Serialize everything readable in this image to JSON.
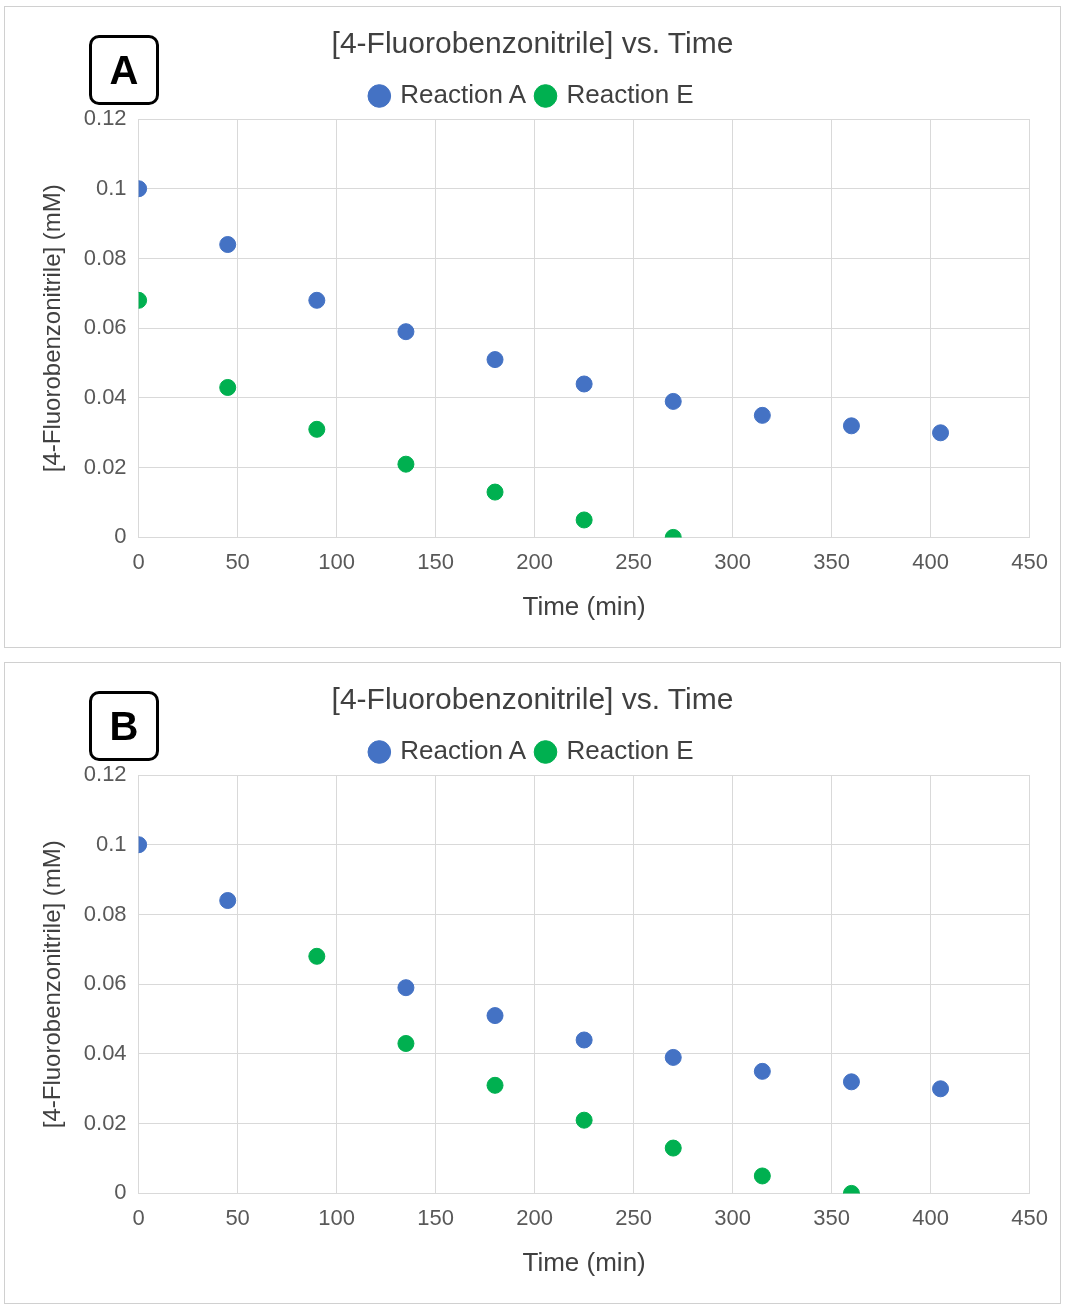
{
  "chart_data": [
    {
      "type": "scatter",
      "title": "[4-Fluorobenzonitrile] vs. Time",
      "xlabel": "Time (min)",
      "ylabel": "[4-Fluorobenzonitrile] (mM)",
      "annotations": [
        "A"
      ],
      "x": [
        0,
        45,
        90,
        135,
        180,
        225,
        270,
        315,
        360,
        405
      ],
      "series": [
        {
          "name": "Reaction A",
          "color": "#4472c4",
          "values": [
            0.1,
            0.084,
            0.068,
            0.059,
            0.051,
            0.044,
            0.039,
            0.035,
            0.032,
            0.03
          ]
        },
        {
          "name": "Reaction E",
          "color": "#00b050",
          "x": [
            0,
            45,
            90,
            135,
            180,
            225,
            270
          ],
          "values": [
            0.068,
            0.043,
            0.031,
            0.021,
            0.013,
            0.005,
            0
          ]
        }
      ],
      "xlim": [
        0,
        450
      ],
      "xticks": [
        0,
        50,
        100,
        150,
        200,
        250,
        300,
        350,
        400,
        450
      ],
      "ylim": [
        0,
        0.12
      ],
      "yticks": [
        0,
        0.02,
        0.04,
        0.06,
        0.08,
        0.1,
        0.12
      ],
      "grid": true,
      "legend": "top",
      "marker": "circle"
    },
    {
      "type": "scatter",
      "title": "[4-Fluorobenzonitrile] vs. Time",
      "xlabel": "Time (min)",
      "ylabel": "[4-Fluorobenzonitrile] (mM)",
      "annotations": [
        "B"
      ],
      "x": [
        0,
        45,
        90,
        135,
        180,
        225,
        270,
        315,
        360,
        405
      ],
      "series": [
        {
          "name": "Reaction A",
          "color": "#4472c4",
          "values": [
            0.1,
            0.084,
            null,
            0.059,
            0.051,
            0.044,
            0.039,
            0.035,
            0.032,
            0.03
          ]
        },
        {
          "name": "Reaction E",
          "color": "#00b050",
          "x": [
            90,
            135,
            180,
            225,
            270,
            315,
            360
          ],
          "values": [
            0.068,
            0.043,
            0.031,
            0.021,
            0.013,
            0.005,
            0
          ]
        }
      ],
      "xlim": [
        0,
        450
      ],
      "xticks": [
        0,
        50,
        100,
        150,
        200,
        250,
        300,
        350,
        400,
        450
      ],
      "ylim": [
        0,
        0.12
      ],
      "yticks": [
        0,
        0.02,
        0.04,
        0.06,
        0.08,
        0.1,
        0.12
      ],
      "grid": true,
      "legend": "top",
      "marker": "circle"
    }
  ]
}
